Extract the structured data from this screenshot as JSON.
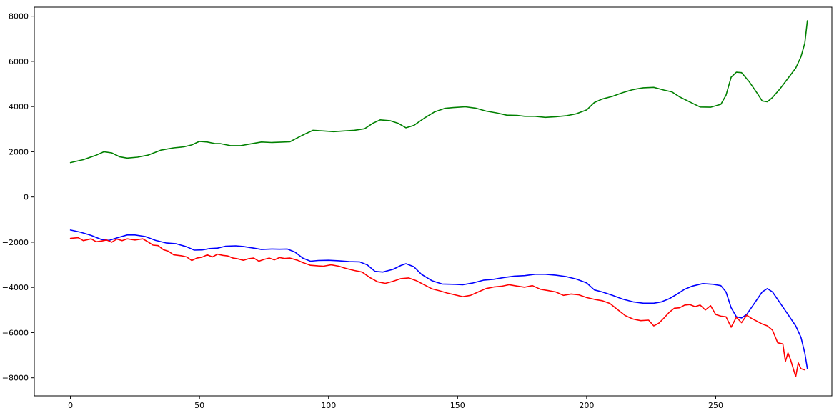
{
  "chart_data": {
    "type": "line",
    "title": "",
    "xlabel": "",
    "ylabel": "",
    "xlim": [
      -14,
      295
    ],
    "ylim": [
      -8800,
      8400
    ],
    "xticks": [
      0,
      50,
      100,
      150,
      200,
      250
    ],
    "yticks": [
      -8000,
      -6000,
      -4000,
      -2000,
      0,
      2000,
      4000,
      6000,
      8000
    ],
    "xtick_labels": [
      "0",
      "50",
      "100",
      "150",
      "200",
      "250"
    ],
    "ytick_labels": [
      "−8000",
      "−6000",
      "−4000",
      "−2000",
      "0",
      "2000",
      "4000",
      "6000",
      "8000"
    ],
    "grid": false,
    "legend": "none",
    "series": [
      {
        "color": "#008000",
        "points": [
          [
            0,
            1520
          ],
          [
            5,
            1650
          ],
          [
            10,
            1850
          ],
          [
            13,
            2000
          ],
          [
            16,
            1950
          ],
          [
            19,
            1780
          ],
          [
            22,
            1720
          ],
          [
            26,
            1760
          ],
          [
            30,
            1850
          ],
          [
            35,
            2070
          ],
          [
            40,
            2170
          ],
          [
            44,
            2220
          ],
          [
            47,
            2300
          ],
          [
            50,
            2460
          ],
          [
            53,
            2430
          ],
          [
            56,
            2360
          ],
          [
            58,
            2360
          ],
          [
            62,
            2270
          ],
          [
            66,
            2270
          ],
          [
            70,
            2350
          ],
          [
            74,
            2430
          ],
          [
            78,
            2410
          ],
          [
            81,
            2420
          ],
          [
            85,
            2440
          ],
          [
            88,
            2620
          ],
          [
            91,
            2790
          ],
          [
            94,
            2950
          ],
          [
            98,
            2920
          ],
          [
            102,
            2890
          ],
          [
            106,
            2920
          ],
          [
            110,
            2950
          ],
          [
            114,
            3020
          ],
          [
            117,
            3250
          ],
          [
            120,
            3410
          ],
          [
            124,
            3370
          ],
          [
            127,
            3260
          ],
          [
            130,
            3060
          ],
          [
            133,
            3160
          ],
          [
            137,
            3480
          ],
          [
            141,
            3760
          ],
          [
            145,
            3920
          ],
          [
            149,
            3960
          ],
          [
            153,
            3990
          ],
          [
            157,
            3930
          ],
          [
            161,
            3800
          ],
          [
            165,
            3720
          ],
          [
            169,
            3620
          ],
          [
            173,
            3610
          ],
          [
            176,
            3570
          ],
          [
            180,
            3570
          ],
          [
            184,
            3520
          ],
          [
            188,
            3550
          ],
          [
            192,
            3590
          ],
          [
            196,
            3680
          ],
          [
            200,
            3850
          ],
          [
            203,
            4180
          ],
          [
            206,
            4330
          ],
          [
            210,
            4450
          ],
          [
            214,
            4620
          ],
          [
            218,
            4750
          ],
          [
            222,
            4830
          ],
          [
            226,
            4850
          ],
          [
            230,
            4730
          ],
          [
            233,
            4650
          ],
          [
            236,
            4430
          ],
          [
            240,
            4200
          ],
          [
            244,
            3980
          ],
          [
            248,
            3970
          ],
          [
            252,
            4100
          ],
          [
            254,
            4500
          ],
          [
            256,
            5300
          ],
          [
            258,
            5520
          ],
          [
            260,
            5500
          ],
          [
            263,
            5100
          ],
          [
            266,
            4600
          ],
          [
            268,
            4250
          ],
          [
            270,
            4210
          ],
          [
            272,
            4400
          ],
          [
            275,
            4800
          ],
          [
            278,
            5250
          ],
          [
            281,
            5700
          ],
          [
            283,
            6200
          ],
          [
            284.5,
            6800
          ],
          [
            285.5,
            7800
          ]
        ]
      },
      {
        "color": "#0000ff",
        "points": [
          [
            0,
            -1460
          ],
          [
            4,
            -1560
          ],
          [
            8,
            -1700
          ],
          [
            12,
            -1880
          ],
          [
            15,
            -1920
          ],
          [
            18,
            -1810
          ],
          [
            22,
            -1680
          ],
          [
            25,
            -1680
          ],
          [
            29,
            -1750
          ],
          [
            33,
            -1920
          ],
          [
            37,
            -2030
          ],
          [
            41,
            -2070
          ],
          [
            45,
            -2200
          ],
          [
            48,
            -2350
          ],
          [
            51,
            -2340
          ],
          [
            54,
            -2280
          ],
          [
            57,
            -2260
          ],
          [
            60,
            -2180
          ],
          [
            64,
            -2160
          ],
          [
            67,
            -2190
          ],
          [
            71,
            -2260
          ],
          [
            74,
            -2320
          ],
          [
            78,
            -2300
          ],
          [
            81,
            -2310
          ],
          [
            84,
            -2300
          ],
          [
            87,
            -2440
          ],
          [
            90,
            -2700
          ],
          [
            93,
            -2840
          ],
          [
            96,
            -2810
          ],
          [
            100,
            -2800
          ],
          [
            104,
            -2820
          ],
          [
            108,
            -2860
          ],
          [
            112,
            -2870
          ],
          [
            115,
            -3000
          ],
          [
            118,
            -3290
          ],
          [
            121,
            -3320
          ],
          [
            125,
            -3200
          ],
          [
            128,
            -3030
          ],
          [
            130,
            -2950
          ],
          [
            133,
            -3080
          ],
          [
            136,
            -3420
          ],
          [
            140,
            -3700
          ],
          [
            144,
            -3850
          ],
          [
            148,
            -3860
          ],
          [
            152,
            -3880
          ],
          [
            156,
            -3800
          ],
          [
            160,
            -3680
          ],
          [
            164,
            -3640
          ],
          [
            168,
            -3560
          ],
          [
            172,
            -3500
          ],
          [
            176,
            -3480
          ],
          [
            180,
            -3420
          ],
          [
            184,
            -3420
          ],
          [
            188,
            -3460
          ],
          [
            192,
            -3520
          ],
          [
            196,
            -3630
          ],
          [
            200,
            -3800
          ],
          [
            203,
            -4110
          ],
          [
            206,
            -4200
          ],
          [
            210,
            -4350
          ],
          [
            214,
            -4520
          ],
          [
            218,
            -4640
          ],
          [
            222,
            -4700
          ],
          [
            226,
            -4700
          ],
          [
            229,
            -4640
          ],
          [
            232,
            -4500
          ],
          [
            235,
            -4300
          ],
          [
            238,
            -4080
          ],
          [
            241,
            -3940
          ],
          [
            245,
            -3830
          ],
          [
            249,
            -3860
          ],
          [
            252,
            -3920
          ],
          [
            254,
            -4200
          ],
          [
            256,
            -4900
          ],
          [
            258,
            -5300
          ],
          [
            260,
            -5350
          ],
          [
            262,
            -5200
          ],
          [
            265,
            -4700
          ],
          [
            268,
            -4200
          ],
          [
            270,
            -4050
          ],
          [
            272,
            -4200
          ],
          [
            275,
            -4700
          ],
          [
            278,
            -5200
          ],
          [
            281,
            -5700
          ],
          [
            283,
            -6200
          ],
          [
            284.5,
            -6900
          ],
          [
            285.5,
            -7600
          ]
        ]
      },
      {
        "color": "#ff0000",
        "points": [
          [
            0,
            -1830
          ],
          [
            3,
            -1800
          ],
          [
            5,
            -1930
          ],
          [
            8,
            -1850
          ],
          [
            10,
            -1980
          ],
          [
            12,
            -1950
          ],
          [
            14,
            -1900
          ],
          [
            16,
            -2000
          ],
          [
            18,
            -1860
          ],
          [
            20,
            -1930
          ],
          [
            22,
            -1850
          ],
          [
            25,
            -1900
          ],
          [
            28,
            -1850
          ],
          [
            30,
            -1980
          ],
          [
            32,
            -2130
          ],
          [
            34,
            -2150
          ],
          [
            36,
            -2330
          ],
          [
            38,
            -2400
          ],
          [
            40,
            -2560
          ],
          [
            43,
            -2600
          ],
          [
            45,
            -2650
          ],
          [
            47,
            -2810
          ],
          [
            49,
            -2700
          ],
          [
            51,
            -2660
          ],
          [
            53,
            -2560
          ],
          [
            55,
            -2650
          ],
          [
            57,
            -2530
          ],
          [
            59,
            -2580
          ],
          [
            61,
            -2610
          ],
          [
            63,
            -2700
          ],
          [
            65,
            -2740
          ],
          [
            67,
            -2800
          ],
          [
            69,
            -2730
          ],
          [
            71,
            -2700
          ],
          [
            73,
            -2840
          ],
          [
            75,
            -2760
          ],
          [
            77,
            -2700
          ],
          [
            79,
            -2780
          ],
          [
            81,
            -2680
          ],
          [
            83,
            -2720
          ],
          [
            85,
            -2700
          ],
          [
            88,
            -2800
          ],
          [
            90,
            -2900
          ],
          [
            93,
            -3020
          ],
          [
            96,
            -3050
          ],
          [
            98,
            -3060
          ],
          [
            101,
            -3000
          ],
          [
            104,
            -3060
          ],
          [
            107,
            -3170
          ],
          [
            110,
            -3250
          ],
          [
            113,
            -3320
          ],
          [
            116,
            -3560
          ],
          [
            119,
            -3750
          ],
          [
            122,
            -3820
          ],
          [
            125,
            -3730
          ],
          [
            128,
            -3610
          ],
          [
            131,
            -3580
          ],
          [
            134,
            -3700
          ],
          [
            137,
            -3880
          ],
          [
            140,
            -4060
          ],
          [
            143,
            -4150
          ],
          [
            146,
            -4250
          ],
          [
            149,
            -4330
          ],
          [
            152,
            -4410
          ],
          [
            155,
            -4350
          ],
          [
            158,
            -4200
          ],
          [
            161,
            -4050
          ],
          [
            164,
            -3980
          ],
          [
            167,
            -3950
          ],
          [
            170,
            -3880
          ],
          [
            173,
            -3940
          ],
          [
            176,
            -3990
          ],
          [
            179,
            -3920
          ],
          [
            182,
            -4080
          ],
          [
            185,
            -4140
          ],
          [
            188,
            -4200
          ],
          [
            191,
            -4350
          ],
          [
            194,
            -4290
          ],
          [
            197,
            -4330
          ],
          [
            200,
            -4450
          ],
          [
            203,
            -4530
          ],
          [
            206,
            -4590
          ],
          [
            209,
            -4710
          ],
          [
            212,
            -4980
          ],
          [
            215,
            -5250
          ],
          [
            218,
            -5400
          ],
          [
            221,
            -5470
          ],
          [
            224,
            -5450
          ],
          [
            226,
            -5700
          ],
          [
            228,
            -5580
          ],
          [
            230,
            -5350
          ],
          [
            232,
            -5100
          ],
          [
            234,
            -4920
          ],
          [
            236,
            -4900
          ],
          [
            238,
            -4780
          ],
          [
            240,
            -4760
          ],
          [
            242,
            -4850
          ],
          [
            244,
            -4780
          ],
          [
            246,
            -5000
          ],
          [
            248,
            -4810
          ],
          [
            250,
            -5200
          ],
          [
            252,
            -5270
          ],
          [
            254,
            -5300
          ],
          [
            256,
            -5760
          ],
          [
            258,
            -5320
          ],
          [
            260,
            -5560
          ],
          [
            262,
            -5230
          ],
          [
            264,
            -5380
          ],
          [
            266,
            -5500
          ],
          [
            268,
            -5620
          ],
          [
            270,
            -5700
          ],
          [
            272,
            -5890
          ],
          [
            274,
            -6450
          ],
          [
            276,
            -6500
          ],
          [
            277,
            -7280
          ],
          [
            278,
            -6900
          ],
          [
            279,
            -7200
          ],
          [
            281,
            -7950
          ],
          [
            282,
            -7340
          ],
          [
            283,
            -7600
          ],
          [
            284.5,
            -7650
          ]
        ]
      }
    ]
  }
}
